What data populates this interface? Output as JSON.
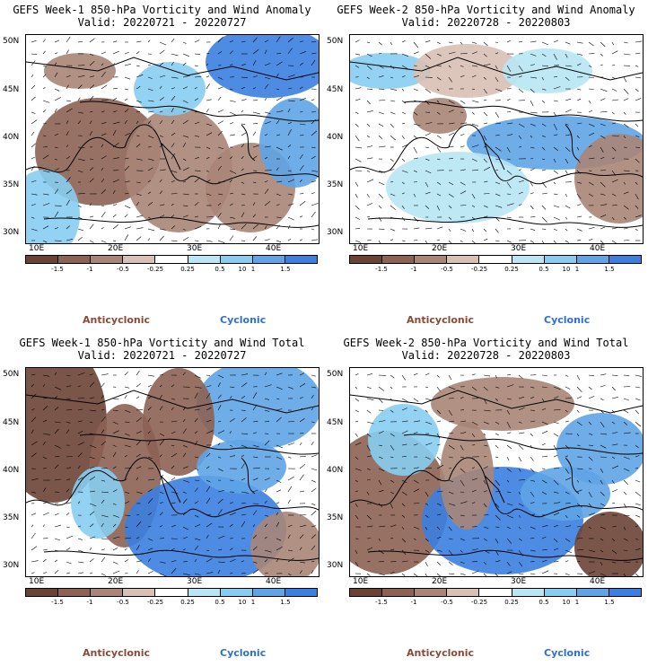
{
  "colors": {
    "anticyclonic_strong": "#6b4335",
    "anticyclonic_mid": "#8c6253",
    "anticyclonic_weak": "#a98577",
    "anticyclonic_faint": "#d8c0b4",
    "neutral": "#ffffff",
    "cyclonic_faint": "#b8e6f4",
    "cyclonic_weak": "#87cdf1",
    "cyclonic_mid": "#5fa4e6",
    "cyclonic_strong": "#3b7fe0",
    "legend_anticyclonic_text": "#8b4a36",
    "legend_cyclonic_text": "#2e6fd8"
  },
  "colorbar": {
    "tick_labels": [
      "-1.5",
      "-1",
      "-0.5",
      "-0.25",
      "0.25",
      "0.5",
      "1",
      "1.5"
    ],
    "center_label": "10"
  },
  "axes": {
    "lat_labels": [
      "50N",
      "45N",
      "40N",
      "35N",
      "30N"
    ],
    "lon_labels": [
      "10E",
      "20E",
      "30E",
      "40E"
    ]
  },
  "legend": {
    "anticyclonic": "Anticyclonic",
    "cyclonic": "Cyclonic"
  },
  "panels": [
    {
      "title": "GEFS Week-1 850-hPa Vorticity and Wind Anomaly",
      "valid": "Valid: 20220721 - 20220727",
      "kind": "anomaly"
    },
    {
      "title": "GEFS Week-2 850-hPa Vorticity and Wind Anomaly",
      "valid": "Valid: 20220728 - 20220803",
      "kind": "anomaly"
    },
    {
      "title": "GEFS Week-1 850-hPa Vorticity and Wind Total",
      "valid": "Valid: 20220721 - 20220727",
      "kind": "total"
    },
    {
      "title": "GEFS Week-2 850-hPa Vorticity and Wind Total",
      "valid": "Valid: 20220728 - 20220803",
      "kind": "total"
    }
  ]
}
